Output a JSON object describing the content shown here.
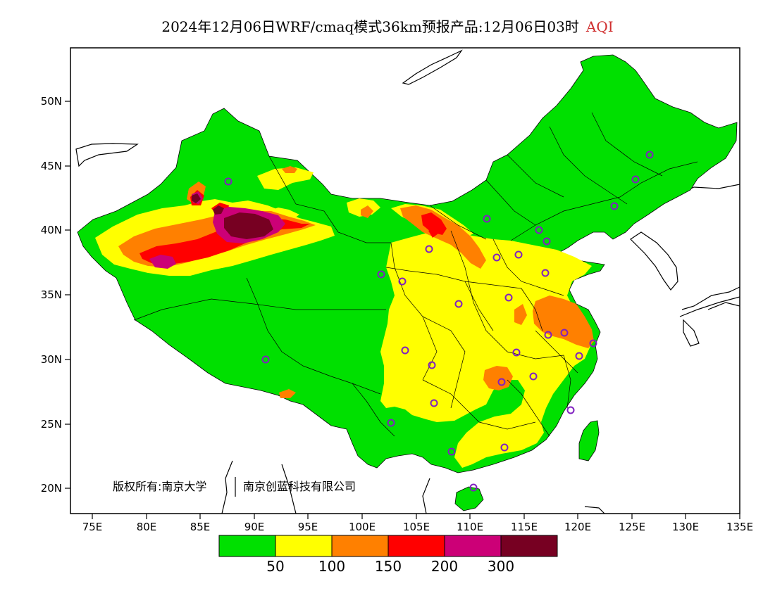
{
  "title": {
    "text": "2024年12月06日WRF/cmaq模式36km预报产品:12月06日03时",
    "product": "AQI"
  },
  "axes": {
    "lat_ticks": [
      "50N",
      "45N",
      "40N",
      "35N",
      "30N",
      "25N",
      "20N"
    ],
    "lon_ticks": [
      "75E",
      "80E",
      "85E",
      "90E",
      "95E",
      "100E",
      "105E",
      "110E",
      "115E",
      "120E",
      "125E",
      "130E",
      "135E"
    ]
  },
  "copyright": {
    "left": "版权所有:南京大学",
    "right": "南京创蓝科技有限公司"
  },
  "legend": {
    "colors": [
      "#00e000",
      "#ffff00",
      "#ff8000",
      "#ff0000",
      "#cc0077",
      "#770022"
    ],
    "labels": [
      "50",
      "100",
      "150",
      "200",
      "300"
    ]
  },
  "colors": {
    "good": "#00e000",
    "moderate": "#ffff00",
    "unhealthy_sensitive": "#ff8000",
    "unhealthy": "#ff0000",
    "very_unhealthy": "#cc0077",
    "hazardous": "#770022",
    "station_marker": "#8020c0"
  }
}
